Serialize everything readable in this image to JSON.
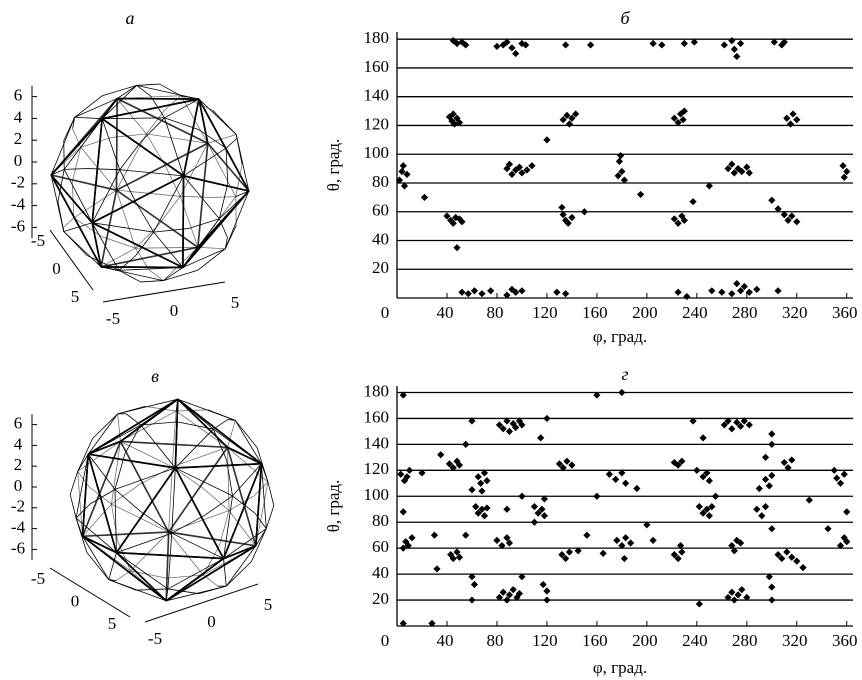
{
  "chart_data": [
    {
      "type": "wireframe3d",
      "title": "а",
      "zticks": [
        6,
        4,
        2,
        0,
        -2,
        -4,
        -6
      ],
      "xticks": [
        -5,
        0,
        5
      ],
      "yticks": [
        5,
        0,
        -5
      ]
    },
    {
      "type": "scatter",
      "title": "б",
      "xlabel": "φ, град.",
      "ylabel": "θ, град.",
      "xlim": [
        0,
        365
      ],
      "ylim": [
        0,
        185
      ],
      "xticks": [
        0,
        40,
        80,
        120,
        160,
        200,
        240,
        280,
        320,
        360
      ],
      "yticks": [
        20,
        40,
        60,
        80,
        100,
        120,
        140,
        160,
        180
      ],
      "grid": true,
      "series": [
        {
          "color": "#000000",
          "x": [
            45,
            48,
            52,
            55,
            80,
            85,
            88,
            92,
            95,
            100,
            103,
            135,
            155,
            205,
            212,
            230,
            238,
            262,
            268,
            270,
            272,
            275,
            302,
            308,
            310,
            42,
            44,
            45,
            46,
            48,
            50,
            133,
            136,
            138,
            140,
            143,
            222,
            225,
            227,
            229,
            230,
            312,
            315,
            317,
            320,
            120,
            2,
            4,
            5,
            6,
            8,
            88,
            90,
            92,
            95,
            98,
            100,
            104,
            108,
            178,
            180,
            182,
            179,
            177,
            265,
            268,
            270,
            273,
            276,
            280,
            282,
            357,
            358,
            360,
            22,
            195,
            237,
            250,
            300,
            150,
            48,
            40,
            43,
            45,
            47,
            50,
            52,
            133,
            135,
            137,
            140,
            132,
            222,
            225,
            228,
            230,
            305,
            310,
            313,
            316,
            320,
            52,
            57,
            62,
            68,
            75,
            88,
            92,
            95,
            100,
            128,
            135,
            225,
            232,
            252,
            260,
            268,
            272,
            275,
            278,
            282,
            288,
            305
          ],
          "values": [
            179,
            177,
            178,
            176,
            175,
            176,
            178,
            174,
            170,
            177,
            176,
            176,
            176,
            177,
            176,
            177,
            178,
            176,
            179,
            173,
            168,
            177,
            178,
            176,
            178,
            126,
            123,
            128,
            121,
            125,
            122,
            124,
            127,
            121,
            125,
            128,
            125,
            122,
            128,
            124,
            130,
            125,
            121,
            128,
            124,
            110,
            82,
            88,
            92,
            78,
            86,
            90,
            93,
            86,
            89,
            91,
            87,
            89,
            92,
            95,
            88,
            82,
            99,
            85,
            90,
            93,
            87,
            90,
            88,
            91,
            87,
            92,
            84,
            88,
            70,
            72,
            67,
            78,
            68,
            60,
            35,
            57,
            54,
            52,
            56,
            55,
            53,
            58,
            54,
            52,
            56,
            63,
            55,
            52,
            57,
            54,
            62,
            58,
            54,
            57,
            53,
            4,
            3,
            5,
            3,
            5,
            2,
            6,
            4,
            5,
            4,
            3,
            4,
            1,
            5,
            4,
            3,
            10,
            5,
            8,
            4,
            6,
            5
          ]
        }
      ]
    },
    {
      "type": "wireframe3d",
      "title": "в",
      "zticks": [
        6,
        4,
        2,
        0,
        -2,
        -4,
        -6
      ],
      "xticks": [
        -5,
        0,
        5
      ],
      "yticks": [
        5,
        0,
        -5
      ]
    },
    {
      "type": "scatter",
      "title": "г",
      "xlabel": "φ, град.",
      "ylabel": "θ, град.",
      "xlim": [
        0,
        365
      ],
      "ylim": [
        0,
        185
      ],
      "xticks": [
        0,
        40,
        80,
        120,
        160,
        200,
        240,
        280,
        320,
        360
      ],
      "yticks": [
        20,
        40,
        60,
        80,
        100,
        120,
        140,
        160,
        180
      ],
      "grid": true,
      "series": [
        {
          "color": "#000000",
          "x": [
            5,
            28,
            5,
            160,
            180,
            82,
            85,
            88,
            90,
            93,
            95,
            98,
            100,
            262,
            265,
            268,
            272,
            275,
            278,
            282,
            60,
            120,
            237,
            300,
            115,
            55,
            245,
            300,
            42,
            45,
            48,
            50,
            130,
            133,
            136,
            140,
            222,
            225,
            228,
            310,
            313,
            316,
            35,
            295,
            3,
            6,
            8,
            10,
            20,
            65,
            67,
            70,
            72,
            170,
            175,
            180,
            183,
            245,
            248,
            250,
            240,
            295,
            298,
            300,
            352,
            355,
            358,
            350,
            60,
            68,
            100,
            118,
            160,
            192,
            255,
            290,
            330,
            63,
            65,
            68,
            70,
            72,
            88,
            110,
            113,
            116,
            118,
            242,
            245,
            248,
            250,
            252,
            288,
            292,
            295,
            5,
            360,
            110,
            200,
            300,
            345,
            5,
            7,
            9,
            12,
            30,
            80,
            84,
            88,
            90,
            176,
            180,
            183,
            187,
            268,
            270,
            272,
            275,
            355,
            358,
            360,
            55,
            152,
            205,
            227,
            145,
            43,
            45,
            48,
            50,
            132,
            135,
            138,
            222,
            225,
            228,
            305,
            308,
            312,
            316,
            320,
            325,
            165,
            60,
            62,
            32,
            100,
            117,
            120,
            298,
            300,
            182,
            82,
            85,
            88,
            90,
            93,
            96,
            98,
            242,
            265,
            268,
            270,
            273,
            276,
            280,
            60,
            120,
            300
          ],
          "values": [
            2,
            2,
            178,
            178,
            180,
            155,
            152,
            158,
            150,
            156,
            153,
            158,
            155,
            155,
            158,
            152,
            157,
            154,
            158,
            155,
            158,
            160,
            158,
            148,
            145,
            140,
            145,
            140,
            125,
            122,
            127,
            124,
            125,
            122,
            127,
            124,
            126,
            124,
            127,
            126,
            122,
            128,
            132,
            130,
            117,
            112,
            115,
            120,
            118,
            115,
            110,
            118,
            112,
            117,
            113,
            118,
            110,
            115,
            118,
            112,
            120,
            113,
            108,
            116,
            114,
            110,
            117,
            120,
            105,
            104,
            100,
            98,
            100,
            106,
            100,
            106,
            97,
            92,
            87,
            90,
            85,
            91,
            90,
            92,
            87,
            90,
            85,
            92,
            87,
            90,
            85,
            92,
            90,
            85,
            92,
            88,
            88,
            80,
            78,
            75,
            75,
            60,
            65,
            62,
            68,
            70,
            66,
            62,
            68,
            64,
            66,
            62,
            68,
            64,
            62,
            58,
            66,
            64,
            62,
            68,
            65,
            70,
            70,
            66,
            62,
            58,
            55,
            52,
            57,
            53,
            55,
            52,
            57,
            55,
            52,
            57,
            55,
            52,
            57,
            53,
            50,
            45,
            56,
            38,
            32,
            44,
            38,
            32,
            27,
            38,
            30,
            52,
            22,
            26,
            20,
            24,
            28,
            22,
            25,
            17,
            22,
            26,
            20,
            24,
            28,
            22,
            20,
            20,
            20
          ]
        }
      ]
    }
  ]
}
